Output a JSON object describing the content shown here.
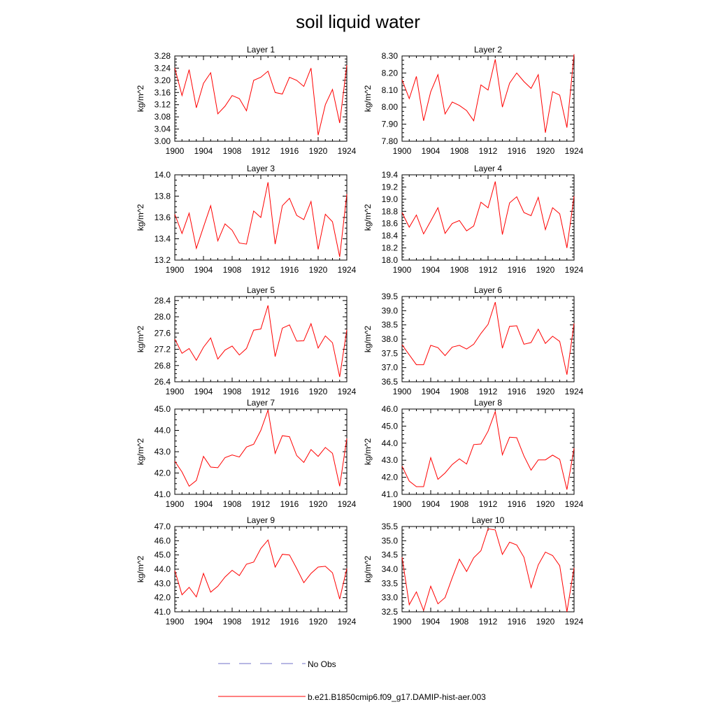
{
  "figure": {
    "title": "soil liquid water"
  },
  "legend": {
    "entries": [
      {
        "label": "No Obs",
        "color": "#6f6fc8",
        "style": "dashed"
      },
      {
        "label": "b.e21.B1850cmip6.f09_g17.DAMIP-hist-aer.003",
        "color": "#ff0000",
        "style": "solid"
      }
    ]
  },
  "chart_data": [
    {
      "type": "line",
      "title": "Layer 1",
      "ylabel": "kg/m^2",
      "xlim": [
        1900,
        1924
      ],
      "ylim": [
        3.0,
        3.28
      ],
      "xticks": [
        "1900",
        "1904",
        "1908",
        "1912",
        "1916",
        "1920",
        "1924"
      ],
      "yticks": [
        "3.00",
        "3.04",
        "3.08",
        "3.12",
        "3.16",
        "3.20",
        "3.24",
        "3.28"
      ],
      "series": [
        {
          "name": "b.e21.B1850cmip6.f09_g17.DAMIP-hist-aer.003",
          "color": "#ff0000",
          "x": [
            1900,
            1901,
            1902,
            1903,
            1904,
            1905,
            1906,
            1907,
            1908,
            1909,
            1910,
            1911,
            1912,
            1913,
            1914,
            1915,
            1916,
            1917,
            1918,
            1919,
            1920,
            1921,
            1922,
            1923,
            1924
          ],
          "y": [
            3.24,
            3.15,
            3.235,
            3.11,
            3.19,
            3.225,
            3.09,
            3.115,
            3.15,
            3.14,
            3.1,
            3.2,
            3.21,
            3.23,
            3.16,
            3.155,
            3.21,
            3.2,
            3.18,
            3.24,
            3.02,
            3.12,
            3.17,
            3.06,
            3.25
          ]
        }
      ]
    },
    {
      "type": "line",
      "title": "Layer 2",
      "ylabel": "kg/m^2",
      "xlim": [
        1900,
        1924
      ],
      "ylim": [
        7.8,
        8.3
      ],
      "xticks": [
        "1900",
        "1904",
        "1908",
        "1912",
        "1916",
        "1920",
        "1924"
      ],
      "yticks": [
        "7.80",
        "7.90",
        "8.00",
        "8.10",
        "8.20",
        "8.30"
      ],
      "series": [
        {
          "name": "b.e21.B1850cmip6.f09_g17.DAMIP-hist-aer.003",
          "color": "#ff0000",
          "x": [
            1900,
            1901,
            1902,
            1903,
            1904,
            1905,
            1906,
            1907,
            1908,
            1909,
            1910,
            1911,
            1912,
            1913,
            1914,
            1915,
            1916,
            1917,
            1918,
            1919,
            1920,
            1921,
            1922,
            1923,
            1924
          ],
          "y": [
            8.16,
            8.05,
            8.18,
            7.92,
            8.09,
            8.19,
            7.96,
            8.03,
            8.01,
            7.98,
            7.92,
            8.13,
            8.1,
            8.28,
            8.0,
            8.14,
            8.2,
            8.15,
            8.11,
            8.19,
            7.85,
            8.09,
            8.07,
            7.88,
            8.31
          ]
        }
      ]
    },
    {
      "type": "line",
      "title": "Layer 3",
      "ylabel": "kg/m^2",
      "xlim": [
        1900,
        1924
      ],
      "ylim": [
        13.2,
        14.0
      ],
      "xticks": [
        "1900",
        "1904",
        "1908",
        "1912",
        "1916",
        "1920",
        "1924"
      ],
      "yticks": [
        "13.2",
        "13.4",
        "13.6",
        "13.8",
        "14.0"
      ],
      "series": [
        {
          "name": "b.e21.B1850cmip6.f09_g17.DAMIP-hist-aer.003",
          "color": "#ff0000",
          "x": [
            1900,
            1901,
            1902,
            1903,
            1904,
            1905,
            1906,
            1907,
            1908,
            1909,
            1910,
            1911,
            1912,
            1913,
            1914,
            1915,
            1916,
            1917,
            1918,
            1919,
            1920,
            1921,
            1922,
            1923,
            1924
          ],
          "y": [
            13.63,
            13.45,
            13.64,
            13.31,
            13.51,
            13.71,
            13.38,
            13.54,
            13.48,
            13.36,
            13.35,
            13.66,
            13.6,
            13.93,
            13.35,
            13.71,
            13.78,
            13.62,
            13.58,
            13.75,
            13.3,
            13.63,
            13.56,
            13.23,
            13.82
          ]
        }
      ]
    },
    {
      "type": "line",
      "title": "Layer 4",
      "ylabel": "kg/m^2",
      "xlim": [
        1900,
        1924
      ],
      "ylim": [
        18.0,
        19.4
      ],
      "xticks": [
        "1900",
        "1904",
        "1908",
        "1912",
        "1916",
        "1920",
        "1924"
      ],
      "yticks": [
        "18.0",
        "18.2",
        "18.4",
        "18.6",
        "18.8",
        "19.0",
        "19.2",
        "19.4"
      ],
      "series": [
        {
          "name": "b.e21.B1850cmip6.f09_g17.DAMIP-hist-aer.003",
          "color": "#ff0000",
          "x": [
            1900,
            1901,
            1902,
            1903,
            1904,
            1905,
            1906,
            1907,
            1908,
            1909,
            1910,
            1911,
            1912,
            1913,
            1914,
            1915,
            1916,
            1917,
            1918,
            1919,
            1920,
            1921,
            1922,
            1923,
            1924
          ],
          "y": [
            18.78,
            18.54,
            18.74,
            18.43,
            18.64,
            18.86,
            18.44,
            18.6,
            18.65,
            18.48,
            18.56,
            18.95,
            18.86,
            19.29,
            18.42,
            18.94,
            19.04,
            18.78,
            18.73,
            19.03,
            18.5,
            18.86,
            18.76,
            18.2,
            19.05
          ]
        }
      ]
    },
    {
      "type": "line",
      "title": "Layer 5",
      "ylabel": "kg/m^2",
      "xlim": [
        1900,
        1924
      ],
      "ylim": [
        26.4,
        28.5
      ],
      "xticks": [
        "1900",
        "1904",
        "1908",
        "1912",
        "1916",
        "1920",
        "1924"
      ],
      "yticks": [
        "26.4",
        "26.8",
        "27.2",
        "27.6",
        "28.0",
        "28.4"
      ],
      "series": [
        {
          "name": "b.e21.B1850cmip6.f09_g17.DAMIP-hist-aer.003",
          "color": "#ff0000",
          "x": [
            1900,
            1901,
            1902,
            1903,
            1904,
            1905,
            1906,
            1907,
            1908,
            1909,
            1910,
            1911,
            1912,
            1913,
            1914,
            1915,
            1916,
            1917,
            1918,
            1919,
            1920,
            1921,
            1922,
            1923,
            1924
          ],
          "y": [
            27.45,
            27.1,
            27.22,
            26.93,
            27.25,
            27.48,
            26.96,
            27.18,
            27.28,
            27.06,
            27.22,
            27.67,
            27.7,
            28.28,
            27.02,
            27.72,
            27.8,
            27.4,
            27.41,
            27.83,
            27.23,
            27.53,
            27.36,
            26.52,
            27.68
          ]
        }
      ]
    },
    {
      "type": "line",
      "title": "Layer 6",
      "ylabel": "kg/m^2",
      "xlim": [
        1900,
        1924
      ],
      "ylim": [
        36.5,
        39.5
      ],
      "xticks": [
        "1900",
        "1904",
        "1908",
        "1912",
        "1916",
        "1920",
        "1924"
      ],
      "yticks": [
        "36.5",
        "37.0",
        "37.5",
        "38.0",
        "38.5",
        "39.0",
        "39.5"
      ],
      "series": [
        {
          "name": "b.e21.B1850cmip6.f09_g17.DAMIP-hist-aer.003",
          "color": "#ff0000",
          "x": [
            1900,
            1901,
            1902,
            1903,
            1904,
            1905,
            1906,
            1907,
            1908,
            1909,
            1910,
            1911,
            1912,
            1913,
            1914,
            1915,
            1916,
            1917,
            1918,
            1919,
            1920,
            1921,
            1922,
            1923,
            1924
          ],
          "y": [
            37.8,
            37.45,
            37.1,
            37.1,
            37.78,
            37.7,
            37.42,
            37.72,
            37.78,
            37.65,
            37.82,
            38.2,
            38.52,
            39.3,
            37.68,
            38.45,
            38.47,
            37.82,
            37.88,
            38.35,
            37.85,
            38.1,
            37.92,
            36.75,
            38.55
          ]
        }
      ]
    },
    {
      "type": "line",
      "title": "Layer 7",
      "ylabel": "kg/m^2",
      "xlim": [
        1900,
        1924
      ],
      "ylim": [
        41.0,
        45.0
      ],
      "xticks": [
        "1900",
        "1904",
        "1908",
        "1912",
        "1916",
        "1920",
        "1924"
      ],
      "yticks": [
        "41.0",
        "42.0",
        "43.0",
        "44.0",
        "45.0"
      ],
      "series": [
        {
          "name": "b.e21.B1850cmip6.f09_g17.DAMIP-hist-aer.003",
          "color": "#ff0000",
          "x": [
            1900,
            1901,
            1902,
            1903,
            1904,
            1905,
            1906,
            1907,
            1908,
            1909,
            1910,
            1911,
            1912,
            1913,
            1914,
            1915,
            1916,
            1917,
            1918,
            1919,
            1920,
            1921,
            1922,
            1923,
            1924
          ],
          "y": [
            42.55,
            42.05,
            41.38,
            41.65,
            42.78,
            42.28,
            42.25,
            42.72,
            42.85,
            42.75,
            43.22,
            43.35,
            44.0,
            44.95,
            42.92,
            43.75,
            43.7,
            42.82,
            42.5,
            43.1,
            42.78,
            43.2,
            42.92,
            41.38,
            43.62
          ]
        }
      ]
    },
    {
      "type": "line",
      "title": "Layer 8",
      "ylabel": "kg/m^2",
      "xlim": [
        1900,
        1924
      ],
      "ylim": [
        41.0,
        46.0
      ],
      "xticks": [
        "1900",
        "1904",
        "1908",
        "1912",
        "1916",
        "1920",
        "1924"
      ],
      "yticks": [
        "41.0",
        "42.0",
        "43.0",
        "44.0",
        "45.0",
        "46.0"
      ],
      "series": [
        {
          "name": "b.e21.B1850cmip6.f09_g17.DAMIP-hist-aer.003",
          "color": "#ff0000",
          "x": [
            1900,
            1901,
            1902,
            1903,
            1904,
            1905,
            1906,
            1907,
            1908,
            1909,
            1910,
            1911,
            1912,
            1913,
            1914,
            1915,
            1916,
            1917,
            1918,
            1919,
            1920,
            1921,
            1922,
            1923,
            1924
          ],
          "y": [
            42.65,
            41.78,
            41.45,
            41.45,
            43.15,
            41.88,
            42.25,
            42.75,
            43.08,
            42.78,
            43.92,
            43.95,
            44.7,
            45.85,
            43.32,
            44.35,
            44.32,
            43.25,
            42.42,
            43.02,
            43.02,
            43.3,
            43.05,
            41.28,
            43.7
          ]
        }
      ]
    },
    {
      "type": "line",
      "title": "Layer 9",
      "ylabel": "kg/m^2",
      "xlim": [
        1900,
        1924
      ],
      "ylim": [
        41.0,
        47.0
      ],
      "xticks": [
        "1900",
        "1904",
        "1908",
        "1912",
        "1916",
        "1920",
        "1924"
      ],
      "yticks": [
        "41.0",
        "42.0",
        "43.0",
        "44.0",
        "45.0",
        "46.0",
        "47.0"
      ],
      "series": [
        {
          "name": "b.e21.B1850cmip6.f09_g17.DAMIP-hist-aer.003",
          "color": "#ff0000",
          "x": [
            1900,
            1901,
            1902,
            1903,
            1904,
            1905,
            1906,
            1907,
            1908,
            1909,
            1910,
            1911,
            1912,
            1913,
            1914,
            1915,
            1916,
            1917,
            1918,
            1919,
            1920,
            1921,
            1922,
            1923,
            1924
          ],
          "y": [
            43.9,
            42.2,
            42.72,
            42.05,
            43.7,
            42.38,
            42.8,
            43.45,
            43.92,
            43.55,
            44.35,
            44.5,
            45.45,
            46.05,
            44.15,
            45.05,
            45.0,
            44.05,
            43.05,
            43.7,
            44.15,
            44.2,
            43.75,
            41.9,
            44.05
          ]
        }
      ]
    },
    {
      "type": "line",
      "title": "Layer 10",
      "ylabel": "kg/m^2",
      "xlim": [
        1900,
        1924
      ],
      "ylim": [
        32.5,
        35.5
      ],
      "xticks": [
        "1900",
        "1904",
        "1908",
        "1912",
        "1916",
        "1920",
        "1924"
      ],
      "yticks": [
        "32.5",
        "33.0",
        "33.5",
        "34.0",
        "34.5",
        "35.0",
        "35.5"
      ],
      "series": [
        {
          "name": "b.e21.B1850cmip6.f09_g17.DAMIP-hist-aer.003",
          "color": "#ff0000",
          "x": [
            1900,
            1901,
            1902,
            1903,
            1904,
            1905,
            1906,
            1907,
            1908,
            1909,
            1910,
            1911,
            1912,
            1913,
            1914,
            1915,
            1916,
            1917,
            1918,
            1919,
            1920,
            1921,
            1922,
            1923,
            1924
          ],
          "y": [
            34.42,
            32.75,
            33.2,
            32.55,
            33.4,
            32.78,
            33.0,
            33.7,
            34.35,
            33.92,
            34.4,
            34.65,
            35.42,
            35.38,
            34.52,
            34.95,
            34.85,
            34.42,
            33.35,
            34.15,
            34.6,
            34.48,
            34.12,
            32.5,
            34.05
          ]
        }
      ]
    }
  ]
}
